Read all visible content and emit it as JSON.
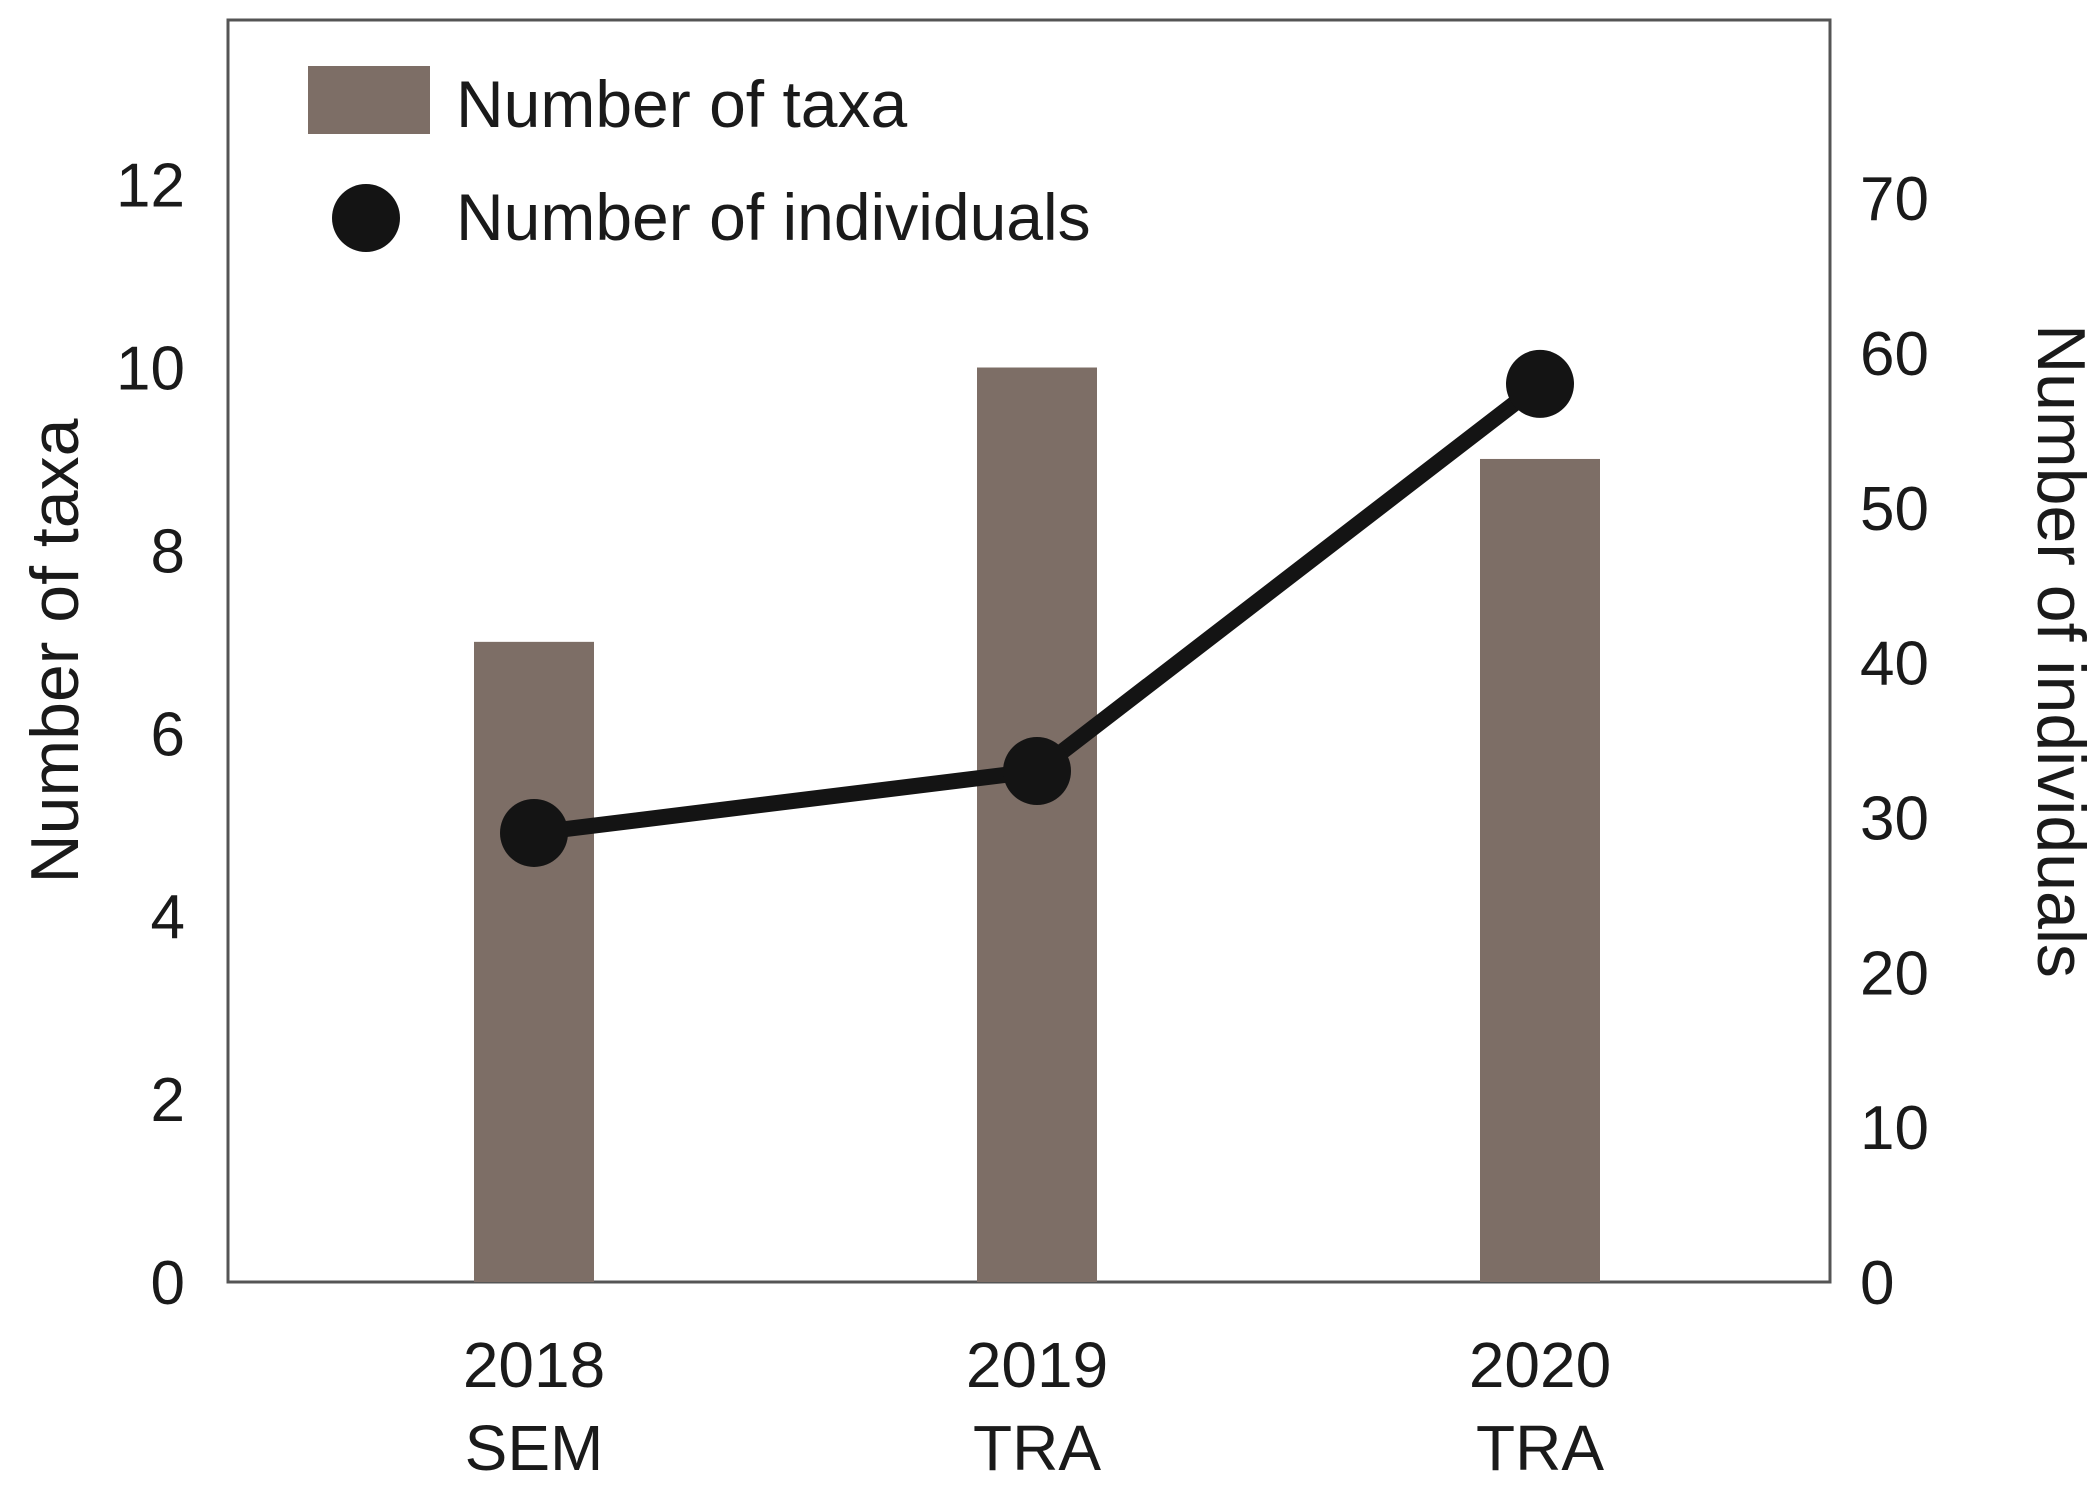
{
  "chart_data": {
    "type": "bar",
    "categories": [
      {
        "year": "2018",
        "code": "SEM"
      },
      {
        "year": "2019",
        "code": "TRA"
      },
      {
        "year": "2020",
        "code": "TRA"
      }
    ],
    "series": [
      {
        "name": "Number of taxa",
        "type": "bar",
        "axis": "left",
        "values": [
          7,
          10,
          9
        ],
        "color": "#7d6e66"
      },
      {
        "name": "Number of individuals",
        "type": "line",
        "axis": "right",
        "values": [
          29,
          33,
          58
        ],
        "color": "#141414"
      }
    ],
    "ylabel_left": "Number of taxa",
    "ylabel_right": "Number of individuals",
    "ylim_left": [
      0,
      13.8
    ],
    "ylim_right": [
      0,
      81.5
    ],
    "yticks_left": [
      "0",
      "2",
      "4",
      "6",
      "8",
      "10",
      "12"
    ],
    "yticks_right": [
      "0",
      "10",
      "20",
      "30",
      "40",
      "50",
      "60",
      "70"
    ],
    "legend": {
      "placement": "top-left",
      "entries": [
        "Number of taxa",
        "Number of individuals"
      ]
    },
    "grid": false
  }
}
